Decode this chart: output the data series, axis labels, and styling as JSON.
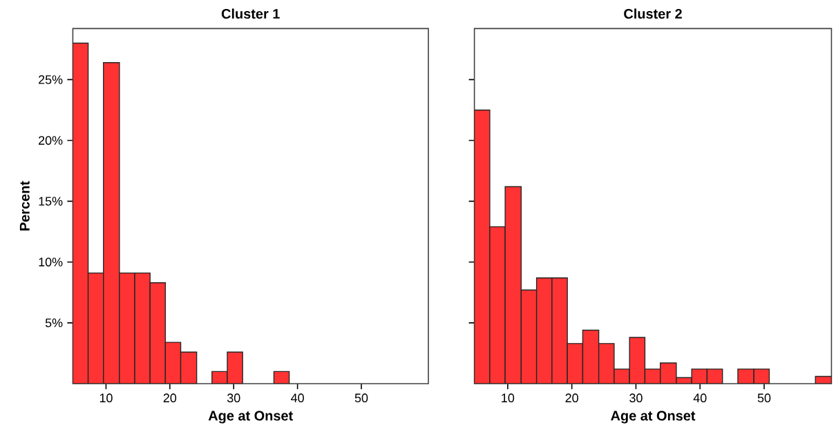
{
  "chart_data": [
    {
      "type": "histogram",
      "title": "Cluster 1",
      "xlabel": "Age at Onset",
      "ylabel": "Percent",
      "color": "#ff3333",
      "bins": [
        4.8,
        7.2,
        9.6,
        12.1,
        14.5,
        16.9,
        19.3,
        21.7,
        24.2,
        26.6,
        29.0,
        31.4,
        36.3,
        38.7
      ],
      "values": [
        28.0,
        9.1,
        26.4,
        9.1,
        9.1,
        8.3,
        3.4,
        2.6,
        null,
        1.0,
        2.6,
        null,
        1.0
      ],
      "xlim": [
        4.8,
        60.5
      ],
      "ylim": [
        0,
        29.2
      ],
      "xticks": [
        10,
        20,
        30,
        40,
        50
      ],
      "yticks": [
        {
          "value": 5,
          "label": "5%"
        },
        {
          "value": 10,
          "label": "10%"
        },
        {
          "value": 15,
          "label": "15%"
        },
        {
          "value": 20,
          "label": "20%"
        },
        {
          "value": 25,
          "label": "25%"
        }
      ],
      "grid": false
    },
    {
      "type": "histogram",
      "title": "Cluster 2",
      "xlabel": "Age at Onset",
      "color": "#ff3333",
      "bins": [
        4.8,
        7.2,
        9.6,
        12.1,
        14.5,
        16.9,
        19.3,
        21.7,
        24.2,
        26.6,
        29.0,
        31.4,
        33.8,
        36.3,
        38.7,
        41.1,
        43.5,
        45.9,
        48.4,
        50.8,
        58.0,
        60.5
      ],
      "values": [
        22.5,
        12.9,
        16.2,
        7.7,
        8.7,
        8.7,
        3.3,
        4.4,
        3.3,
        1.2,
        3.8,
        1.2,
        1.7,
        0.5,
        1.2,
        1.2,
        null,
        1.2,
        1.2,
        null,
        0.6
      ],
      "xlim": [
        4.8,
        60.5
      ],
      "ylim": [
        0,
        29.2
      ],
      "xticks": [
        10,
        20,
        30,
        40,
        50
      ],
      "yticks": [
        {
          "value": 5,
          "label": null
        },
        {
          "value": 10,
          "label": null
        },
        {
          "value": 15,
          "label": null
        },
        {
          "value": 20,
          "label": null
        },
        {
          "value": 25,
          "label": null
        }
      ],
      "tick_labels": "x",
      "grid": false
    }
  ]
}
